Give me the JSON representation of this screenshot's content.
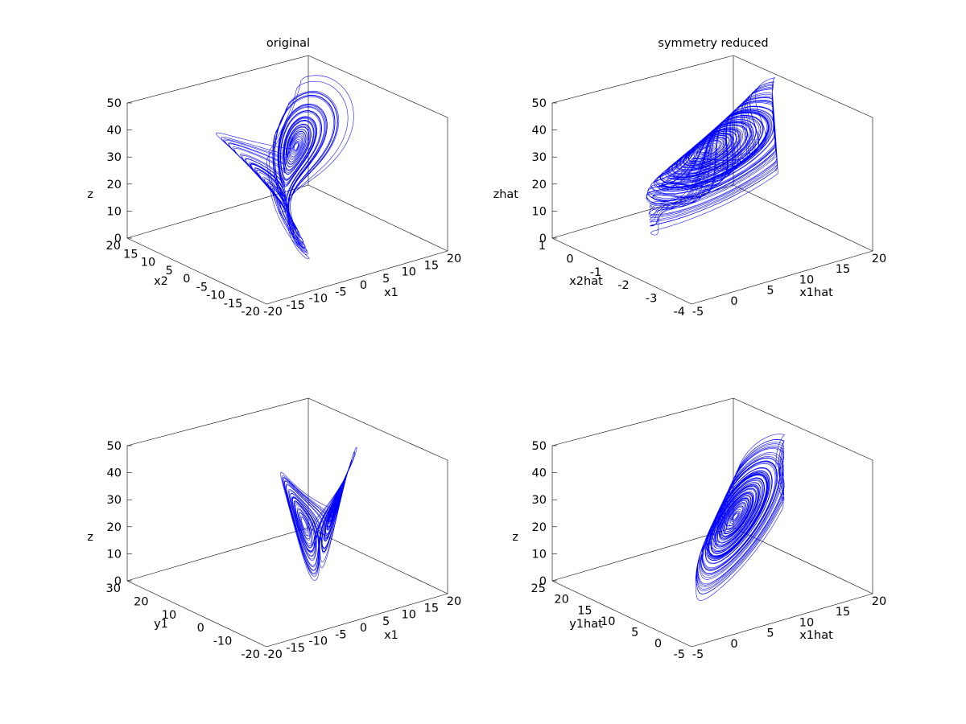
{
  "chart_data": [
    {
      "type": "line3d",
      "title": "original",
      "xlabel": "x1",
      "ylabel": "x2",
      "zlabel": "z",
      "xlim": [
        -20,
        20
      ],
      "ylim": [
        -20,
        20
      ],
      "zlim": [
        0,
        50
      ],
      "xticks": [
        "-20",
        "-15",
        "-10",
        "-5",
        "0",
        "5",
        "10",
        "15",
        "20"
      ],
      "yticks": [
        "20",
        "15",
        "10",
        "5",
        "0",
        "-5",
        "-10",
        "-15",
        "-20"
      ],
      "zticks": [
        "0",
        "10",
        "20",
        "30",
        "40",
        "50"
      ],
      "series": [
        {
          "name": "trajectory",
          "color": "#0000ff",
          "description": "Lorenz-like attractor, two lobes around z≈25"
        }
      ]
    },
    {
      "type": "line3d",
      "title": "symmetry reduced",
      "xlabel": "x1hat",
      "ylabel": "x2hat",
      "zlabel": "zhat",
      "xlim": [
        -5,
        20
      ],
      "ylim": [
        -4,
        1
      ],
      "zlim": [
        0,
        50
      ],
      "xticks": [
        "-5",
        "0",
        "5",
        "10",
        "15",
        "20"
      ],
      "yticks": [
        "1",
        "0",
        "-1",
        "-2",
        "-3",
        "-4"
      ],
      "zticks": [
        "0",
        "10",
        "20",
        "30",
        "40",
        "50"
      ],
      "series": [
        {
          "name": "trajectory",
          "color": "#0000ff",
          "description": "single tilted elliptical lobe"
        }
      ]
    },
    {
      "type": "line3d",
      "title": "",
      "xlabel": "x1",
      "ylabel": "y1",
      "zlabel": "z",
      "xlim": [
        -20,
        20
      ],
      "ylim": [
        -20,
        30
      ],
      "zlim": [
        0,
        50
      ],
      "xticks": [
        "-20",
        "-15",
        "-10",
        "-5",
        "0",
        "5",
        "10",
        "15",
        "20"
      ],
      "yticks": [
        "30",
        "20",
        "10",
        "0",
        "-10",
        "-20"
      ],
      "zticks": [
        "0",
        "10",
        "20",
        "30",
        "40",
        "50"
      ],
      "series": [
        {
          "name": "trajectory",
          "color": "#0000ff",
          "description": "narrow fan of loops"
        }
      ]
    },
    {
      "type": "line3d",
      "title": "",
      "xlabel": "x1hat",
      "ylabel": "y1hat",
      "zlabel": "z",
      "xlim": [
        -5,
        20
      ],
      "ylim": [
        -5,
        25
      ],
      "zlim": [
        0,
        50
      ],
      "xticks": [
        "-5",
        "0",
        "5",
        "10",
        "15",
        "20"
      ],
      "yticks": [
        "25",
        "20",
        "15",
        "10",
        "5",
        "0",
        "-5"
      ],
      "zticks": [
        "0",
        "10",
        "20",
        "30",
        "40",
        "50"
      ],
      "series": [
        {
          "name": "trajectory",
          "color": "#0000ff",
          "description": "single elliptical lobe"
        }
      ]
    }
  ]
}
